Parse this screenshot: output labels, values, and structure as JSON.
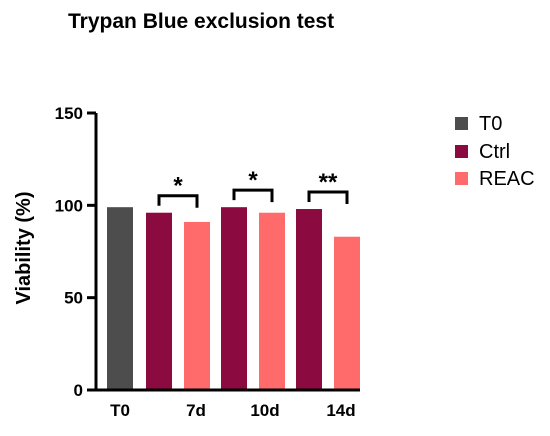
{
  "chart_data": {
    "type": "bar",
    "title": "Trypan Blue exclusion test",
    "xlabel": "",
    "ylabel": "Viability (%)",
    "ylim": [
      0,
      150
    ],
    "yticks": [
      0,
      50,
      100,
      150
    ],
    "categories": [
      "T0",
      "7d",
      "10d",
      "14d"
    ],
    "series": [
      {
        "name": "T0",
        "color": "#4d4d4d",
        "values": [
          99,
          null,
          null,
          null
        ]
      },
      {
        "name": "Ctrl",
        "color": "#8b0a3f",
        "values": [
          null,
          96,
          99,
          98
        ]
      },
      {
        "name": "REAC",
        "color": "#ff6b6b",
        "values": [
          null,
          91,
          96,
          83
        ]
      }
    ],
    "annotations": [
      {
        "category": "7d",
        "text": "*"
      },
      {
        "category": "10d",
        "text": "*"
      },
      {
        "category": "14d",
        "text": "**"
      }
    ],
    "legend_position": "right",
    "grid": false
  }
}
